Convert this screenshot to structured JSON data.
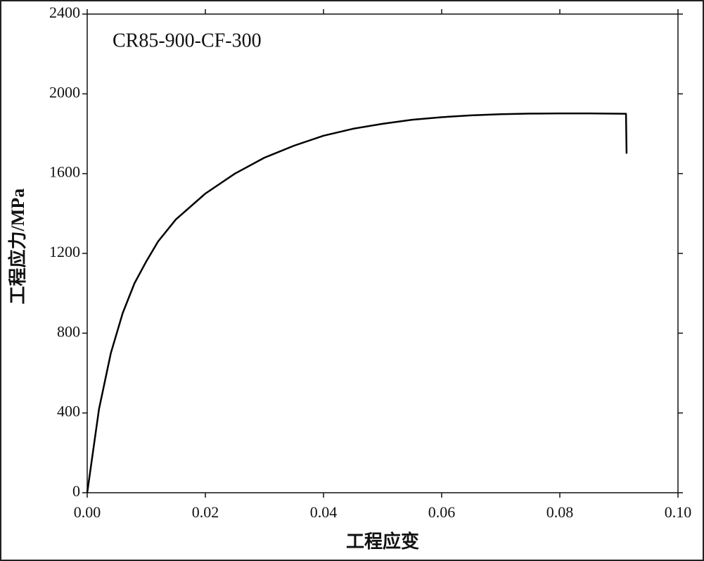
{
  "chart_data": {
    "type": "line",
    "annotation": "CR85-900-CF-300",
    "x_label": "工程应变",
    "y_label": "工程应力/MPa",
    "x": [
      0,
      0.002,
      0.004,
      0.006,
      0.008,
      0.01,
      0.012,
      0.015,
      0.02,
      0.025,
      0.03,
      0.035,
      0.04,
      0.045,
      0.05,
      0.055,
      0.06,
      0.065,
      0.07,
      0.075,
      0.08,
      0.085,
      0.0912,
      0.0913
    ],
    "series": [
      {
        "color": "#000000",
        "values": [
          0,
          420,
          700,
          900,
          1050,
          1160,
          1260,
          1370,
          1500,
          1600,
          1680,
          1740,
          1790,
          1825,
          1850,
          1870,
          1883,
          1892,
          1898,
          1901,
          1902,
          1902,
          1900,
          1700
        ]
      }
    ],
    "xlim": [
      0,
      0.1
    ],
    "ylim": [
      0,
      2400
    ],
    "xticks": [
      {
        "value": 0,
        "label": "0.00"
      },
      {
        "value": 0.02,
        "label": "0.02"
      },
      {
        "value": 0.04,
        "label": "0.04"
      },
      {
        "value": 0.06,
        "label": "0.06"
      },
      {
        "value": 0.08,
        "label": "0.08"
      },
      {
        "value": 0.1,
        "label": "0.10"
      }
    ],
    "yticks": [
      0,
      400,
      800,
      1200,
      1600,
      2000,
      2400
    ]
  }
}
